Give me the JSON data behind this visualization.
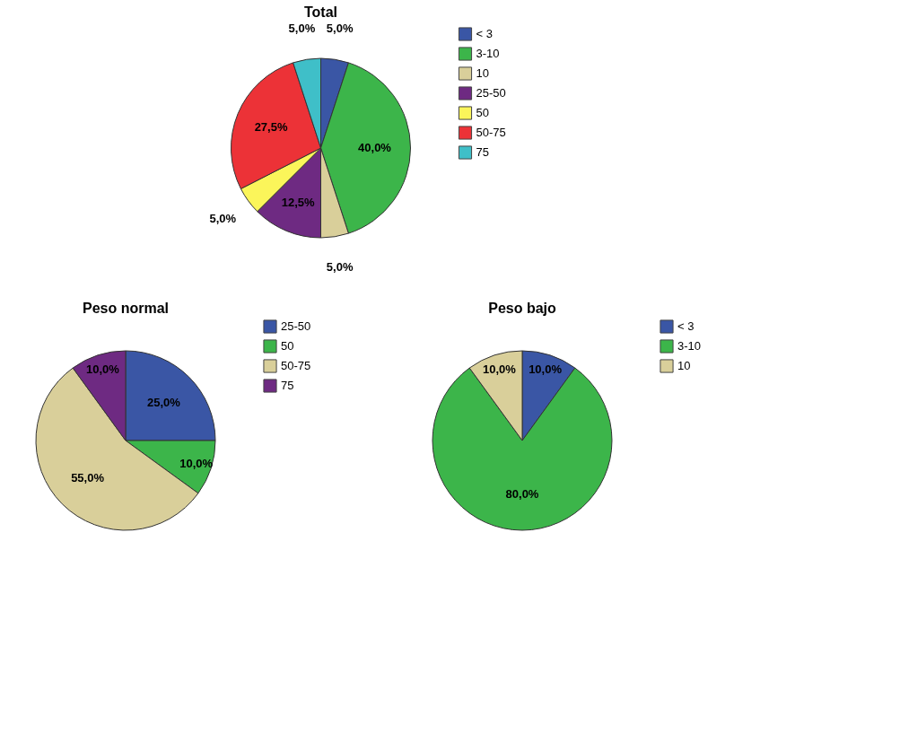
{
  "chart_data": [
    {
      "type": "pie",
      "title": "Total",
      "categories": [
        "< 3",
        "3-10",
        "10",
        "25-50",
        "50",
        "50-75",
        "75"
      ],
      "values": [
        5.0,
        40.0,
        5.0,
        12.5,
        5.0,
        27.5,
        5.0
      ],
      "value_labels": [
        "5,0%",
        "40,0%",
        "5,0%",
        "12,5%",
        "5,0%",
        "27,5%",
        "5,0%"
      ],
      "colors": [
        "#3a56a5",
        "#3cb54a",
        "#d9cf9a",
        "#6e2a82",
        "#fbf55a",
        "#ec3237",
        "#3fbfc8"
      ],
      "legend": "top right"
    },
    {
      "type": "pie",
      "title": "Peso normal",
      "categories": [
        "25-50",
        "50",
        "50-75",
        "75"
      ],
      "values": [
        25.0,
        10.0,
        55.0,
        10.0
      ],
      "value_labels": [
        "25,0%",
        "10,0%",
        "55,0%",
        "10,0%"
      ],
      "colors": [
        "#3a56a5",
        "#3cb54a",
        "#d9cf9a",
        "#6e2a82"
      ],
      "legend": "top right"
    },
    {
      "type": "pie",
      "title": "Peso bajo",
      "categories": [
        "< 3",
        "3-10",
        "10"
      ],
      "values": [
        10.0,
        80.0,
        10.0
      ],
      "value_labels": [
        "10,0%",
        "80,0%",
        "10,0%"
      ],
      "colors": [
        "#3a56a5",
        "#3cb54a",
        "#d9cf9a"
      ],
      "legend": "top right"
    }
  ]
}
